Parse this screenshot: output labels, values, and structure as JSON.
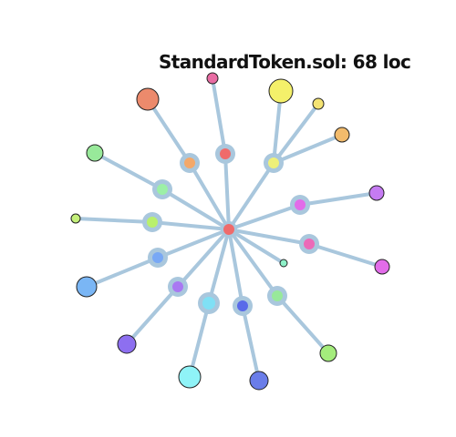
{
  "title": "StandardToken.sol: 68 loc",
  "colors": {
    "edge": "#a9c7dd",
    "hub_ring": "#a9c7dd",
    "outline": "#222222"
  },
  "graph": {
    "center": {
      "id": "center",
      "color": "#ef6b6b"
    },
    "branches": [
      {
        "id": "b01",
        "inner_color": "#f3a86a",
        "outer_color": "#ec8a6c"
      },
      {
        "id": "b02",
        "inner_color": "#ef6b6b",
        "outer_color": "#e86ca3"
      },
      {
        "id": "b03",
        "inner_color": "#eef07a",
        "outer_color": "#f4f06a",
        "extra_leaves": [
          "#f4e373",
          "#f2bb6c"
        ]
      },
      {
        "id": "b04",
        "inner_color": "#9cf0a6",
        "outer_color": "#98e99a"
      },
      {
        "id": "b05",
        "inner_color": "#b9f06c",
        "outer_color": "#c4f07a"
      },
      {
        "id": "b06",
        "inner_color": "#e26ce9",
        "outer_color": "#c57bf2"
      },
      {
        "id": "b07",
        "inner_color": "#ec6ab8",
        "outer_color": "#e26ce9"
      },
      {
        "id": "b08",
        "inner_color": "#78a8f5",
        "outer_color": "#7ab6f5"
      },
      {
        "id": "b09",
        "inner_color": "#a978f2",
        "outer_color": "#8d6ff0"
      },
      {
        "id": "b10",
        "inner_color": "#7fe0f5",
        "outer_color": "#8ff3f7"
      },
      {
        "id": "b11",
        "inner_color": "#5a6ae9",
        "outer_color": "#6a7de9"
      },
      {
        "id": "b12",
        "inner_color": "#98e99a",
        "outer_color": "#a4ec7c"
      },
      {
        "id": "b13",
        "leaf_only": true,
        "outer_color": "#8ef0c8"
      }
    ]
  }
}
